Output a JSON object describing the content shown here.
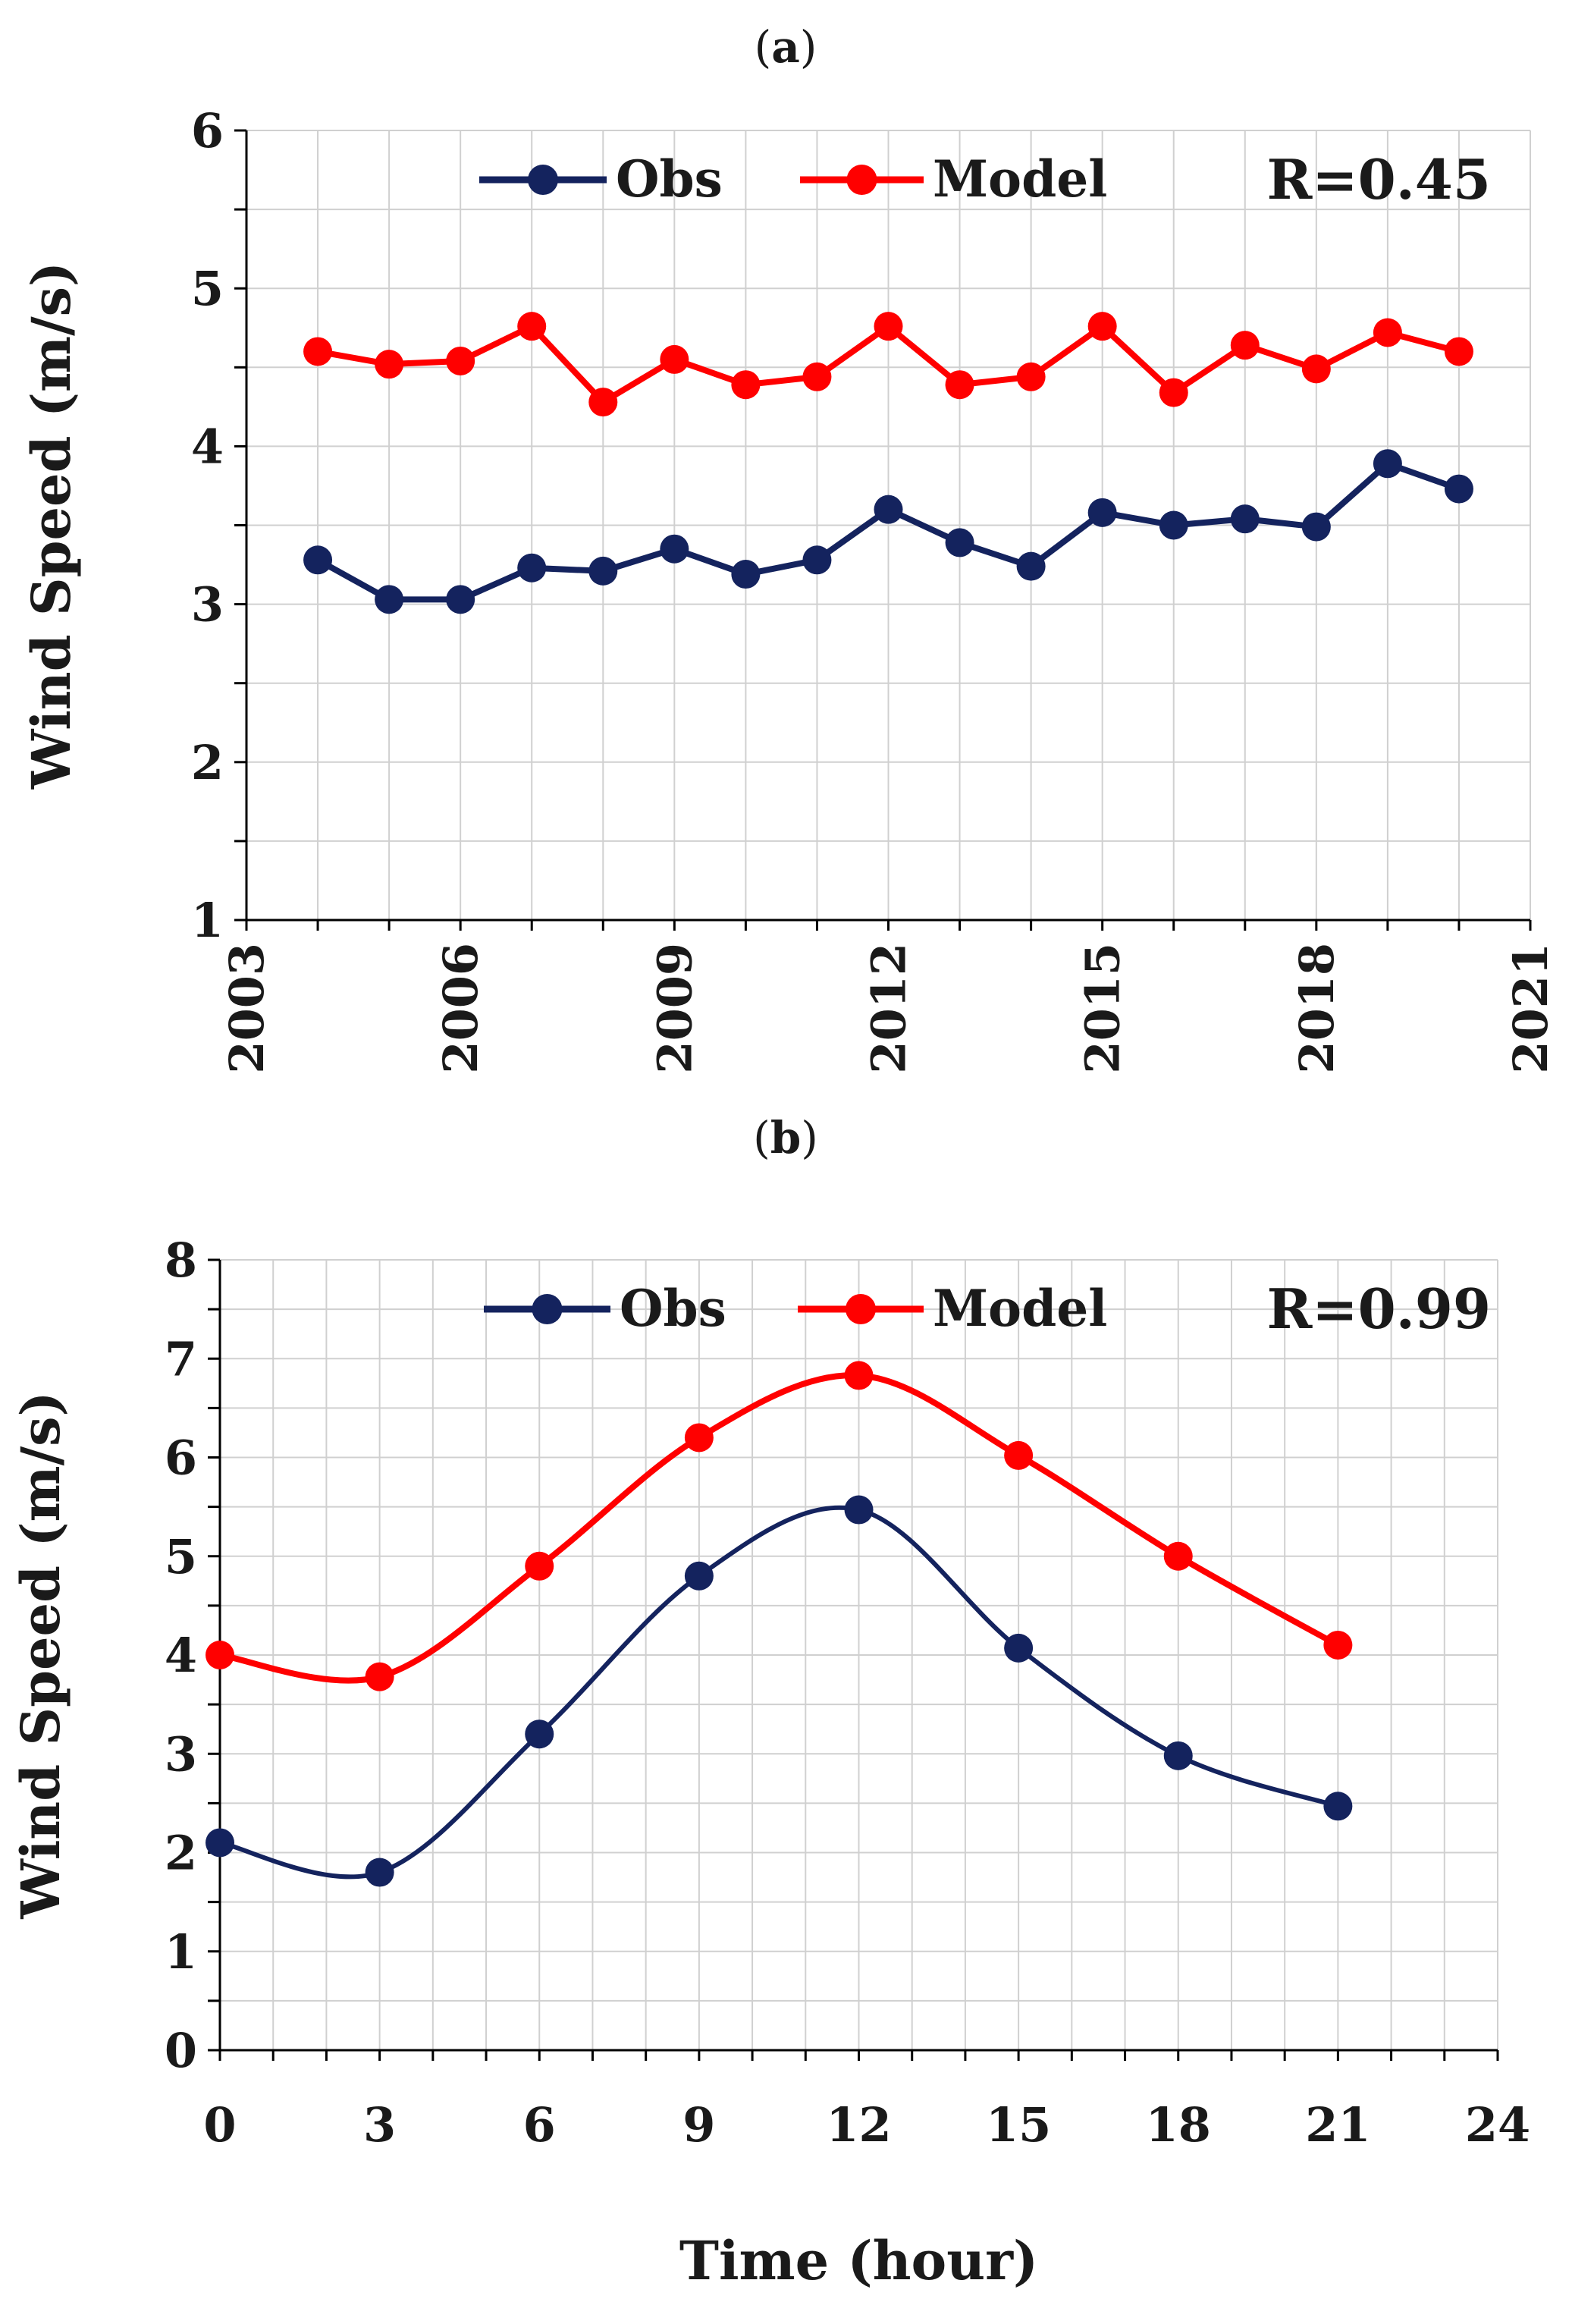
{
  "panel_labels": {
    "a_open": "(",
    "a_letter": "a",
    "a_close": ")",
    "b_open": "(",
    "b_letter": "b",
    "b_close": ")"
  },
  "colors": {
    "obs": "#14235e",
    "model": "#ff0000",
    "grid": "#d0d0d0",
    "axis": "#000000"
  },
  "chart_data": [
    {
      "id": "a",
      "type": "line",
      "title": "",
      "xlabel": "",
      "ylabel": "Wind Speed (m/s)",
      "xlim": [
        2003,
        2021
      ],
      "ylim": [
        1,
        6
      ],
      "xticks": [
        2003,
        2006,
        2009,
        2012,
        2015,
        2018,
        2021
      ],
      "xtick_labels": [
        "2003",
        "2006",
        "2009",
        "2012",
        "2015",
        "2018",
        "2021"
      ],
      "yticks": [
        1,
        2,
        3,
        4,
        5,
        6
      ],
      "ytick_labels": [
        "1",
        "2",
        "3",
        "4",
        "5",
        "6"
      ],
      "minor_step_x": 1,
      "minor_step_y": 0.5,
      "x": [
        2004,
        2005,
        2006,
        2007,
        2008,
        2009,
        2010,
        2011,
        2012,
        2013,
        2014,
        2015,
        2016,
        2017,
        2018,
        2019,
        2020
      ],
      "series": [
        {
          "name": "Obs",
          "color": "#14235e",
          "smooth": false,
          "values": [
            3.28,
            3.03,
            3.03,
            3.23,
            3.21,
            3.35,
            3.19,
            3.28,
            3.6,
            3.39,
            3.24,
            3.58,
            3.5,
            3.54,
            3.49,
            3.89,
            3.73
          ]
        },
        {
          "name": "Model",
          "color": "#ff0000",
          "smooth": false,
          "values": [
            4.6,
            4.52,
            4.54,
            4.76,
            4.28,
            4.55,
            4.39,
            4.44,
            4.76,
            4.39,
            4.44,
            4.76,
            4.34,
            4.64,
            4.49,
            4.72,
            4.6
          ]
        }
      ],
      "legend": [
        {
          "label": "Obs",
          "color": "#14235e"
        },
        {
          "label": "Model",
          "color": "#ff0000"
        }
      ],
      "annotation": "R=0.45"
    },
    {
      "id": "b",
      "type": "line",
      "title": "",
      "xlabel": "Time (hour)",
      "ylabel": "Wind Speed (m/s)",
      "xlim": [
        0,
        24
      ],
      "ylim": [
        0,
        8
      ],
      "xticks": [
        0,
        3,
        6,
        9,
        12,
        15,
        18,
        21,
        24
      ],
      "xtick_labels": [
        "0",
        "3",
        "6",
        "9",
        "12",
        "15",
        "18",
        "21",
        "24"
      ],
      "yticks": [
        0,
        1,
        2,
        3,
        4,
        5,
        6,
        7,
        8
      ],
      "ytick_labels": [
        "0",
        "1",
        "2",
        "3",
        "4",
        "5",
        "6",
        "7",
        "8"
      ],
      "minor_step_x": 1,
      "minor_step_y": 0.5,
      "x": [
        0,
        3,
        6,
        9,
        12,
        15,
        18,
        21
      ],
      "series": [
        {
          "name": "Obs",
          "color": "#14235e",
          "smooth": true,
          "values": [
            2.1,
            1.8,
            3.2,
            4.8,
            5.47,
            4.07,
            2.98,
            2.47
          ]
        },
        {
          "name": "Model",
          "color": "#ff0000",
          "smooth": true,
          "values": [
            4.0,
            3.78,
            4.9,
            6.2,
            6.83,
            6.02,
            5.0,
            4.1
          ]
        }
      ],
      "legend": [
        {
          "label": "Obs",
          "color": "#14235e"
        },
        {
          "label": "Model",
          "color": "#ff0000"
        }
      ],
      "annotation": "R=0.99"
    }
  ]
}
